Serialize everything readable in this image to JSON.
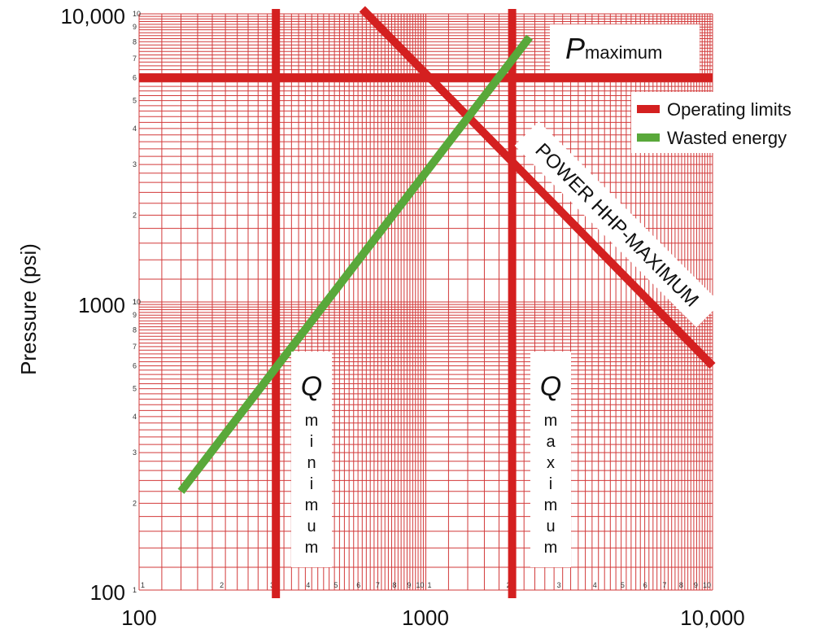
{
  "chart_data": {
    "type": "line",
    "xscale": "log",
    "yscale": "log",
    "xlim": [
      100,
      10000
    ],
    "ylim": [
      100,
      10000
    ],
    "xlabel": "",
    "ylabel": "Pressure (psi)",
    "grid": true,
    "x_major_ticks": [
      {
        "value": 100,
        "label": "100"
      },
      {
        "value": 1000,
        "label": "1000"
      },
      {
        "value": 10000,
        "label": "10,000"
      }
    ],
    "y_major_ticks": [
      {
        "value": 100,
        "label": "100"
      },
      {
        "value": 1000,
        "label": "1000"
      },
      {
        "value": 10000,
        "label": "10,000"
      }
    ],
    "minor_tick_labels": [
      "1",
      "2",
      "3",
      "4",
      "5",
      "6",
      "7",
      "8",
      "9",
      "10"
    ],
    "legend": {
      "placement": "top-right",
      "entries": [
        {
          "name": "Operating limits",
          "color": "#d42020"
        },
        {
          "name": "Wasted energy",
          "color": "#59a83a"
        }
      ]
    },
    "series": [
      {
        "name": "Operating limits",
        "label": "P",
        "label_sub": "maximum",
        "orientation": "horizontal",
        "y": 6000,
        "x_range": [
          100,
          10000
        ],
        "color": "#d42020"
      },
      {
        "name": "Operating limits",
        "label": "Q",
        "label_sub": "minimum",
        "orientation": "vertical",
        "x": 300,
        "y_range": [
          100,
          10000
        ],
        "color": "#d42020"
      },
      {
        "name": "Operating limits",
        "label": "Q",
        "label_sub": "maximum",
        "orientation": "vertical",
        "x": 2000,
        "y_range": [
          100,
          10000
        ],
        "color": "#d42020"
      },
      {
        "name": "Operating limits",
        "label": "POWER HHP-MAXIMUM",
        "orientation": "diagonal",
        "points": [
          [
            600,
            10000
          ],
          [
            10000,
            600
          ]
        ],
        "color": "#d42020"
      },
      {
        "name": "Wasted energy",
        "orientation": "diagonal",
        "points": [
          [
            140,
            220
          ],
          [
            2300,
            8300
          ]
        ],
        "color": "#59a83a"
      }
    ]
  }
}
